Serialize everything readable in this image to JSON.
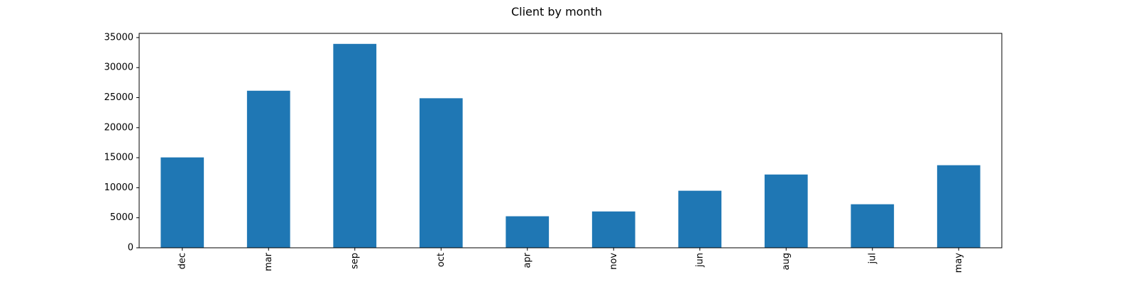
{
  "chart_data": {
    "type": "bar",
    "title": "Client by month",
    "xlabel": "",
    "ylabel": "",
    "categories": [
      "dec",
      "mar",
      "sep",
      "oct",
      "apr",
      "nov",
      "jun",
      "aug",
      "jul",
      "may"
    ],
    "values": [
      15050,
      26150,
      33950,
      24900,
      5250,
      6050,
      9500,
      12200,
      7250,
      13750
    ],
    "ylim": [
      0,
      35700
    ],
    "yticks": [
      0,
      5000,
      10000,
      15000,
      20000,
      25000,
      30000,
      35000
    ],
    "bar_color": "#1f77b4",
    "grid": false,
    "x_tick_rotation": "vertical"
  }
}
